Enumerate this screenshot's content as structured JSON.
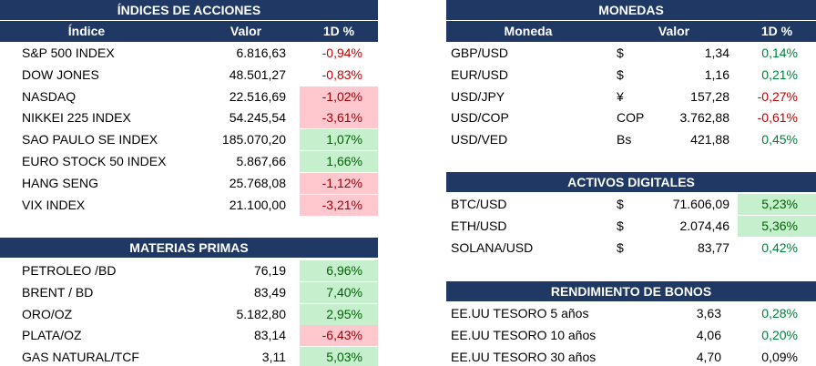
{
  "indices": {
    "title": "ÍNDICES DE ACCIONES",
    "columns": [
      "Índice",
      "Valor",
      "1D %"
    ],
    "rows": [
      [
        "S&P 500 INDEX",
        "6.816,63",
        "-0,94%"
      ],
      [
        "DOW JONES",
        "48.501,27",
        "-0,83%"
      ],
      [
        "NASDAQ",
        "22.516,69",
        "-1,02%"
      ],
      [
        "NIKKEI 225 INDEX",
        "54.245,54",
        "-3,61%"
      ],
      [
        "SAO PAULO SE INDEX",
        "185.070,20",
        "1,07%"
      ],
      [
        "EURO STOCK 50 INDEX",
        "5.867,66",
        "1,66%"
      ],
      [
        "HANG SENG",
        "25.768,08",
        "-1,12%"
      ],
      [
        "VIX INDEX",
        "21.100,00",
        "-3,21%"
      ]
    ]
  },
  "materias_primas": {
    "title": "MATERIAS PRIMAS",
    "rows": [
      [
        "PETROLEO /BD",
        "76,19",
        "6,96%"
      ],
      [
        "BRENT / BD",
        "83,49",
        "7,40%"
      ],
      [
        "ORO/OZ",
        "5.182,80",
        "2,95%"
      ],
      [
        "PLATA/OZ",
        "83,14",
        "-6,43%"
      ],
      [
        "GAS NATURAL/TCF",
        "3,11",
        "5,03%"
      ]
    ]
  },
  "monedas": {
    "title": "MONEDAS",
    "columns": [
      "Moneda",
      "Valor",
      "1D %"
    ],
    "rows": [
      [
        "GBP/USD",
        "$",
        "1,34",
        "0,14%"
      ],
      [
        "EUR/USD",
        "$",
        "1,16",
        "0,21%"
      ],
      [
        "USD/JPY",
        "¥",
        "157,28",
        "-0,27%"
      ],
      [
        "USD/COP",
        "COP",
        "3.762,88",
        "-0,61%"
      ],
      [
        "USD/VED",
        "Bs",
        "421,88",
        "0,45%"
      ]
    ]
  },
  "activos_digitales": {
    "title": "ACTIVOS DIGITALES",
    "rows": [
      [
        "BTC/USD",
        "$",
        "71.606,09",
        "5,23%"
      ],
      [
        "ETH/USD",
        "$",
        "2.074,46",
        "5,36%"
      ],
      [
        "SOLANA/USD",
        "$",
        "83,77",
        "0,42%"
      ]
    ]
  },
  "bonos": {
    "title": "RENDIMIENTO DE BONOS",
    "rows": [
      [
        "EE.UU TESORO 5 años",
        "3,63",
        "0,28%"
      ],
      [
        "EE.UU TESORO 10 años",
        "4,06",
        "0,20%"
      ],
      [
        "EE.UU TESORO 30 años",
        "4,70",
        "0,09%"
      ]
    ]
  }
}
